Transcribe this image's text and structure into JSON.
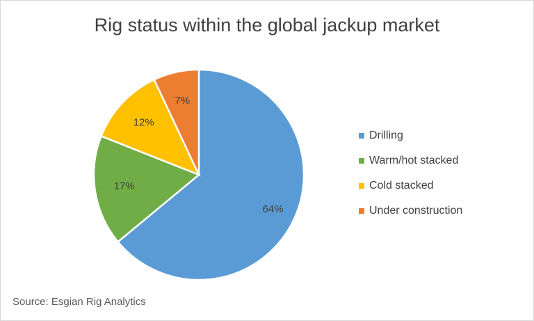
{
  "chart_data": {
    "type": "pie",
    "title": "Rig status within the global jackup market",
    "categories": [
      "Drilling",
      "Warm/hot stacked",
      "Cold stacked",
      "Under construction"
    ],
    "values": [
      64,
      17,
      12,
      7
    ],
    "value_labels": [
      "64%",
      "17%",
      "12%",
      "7%"
    ],
    "colors": [
      "#5b9bd5",
      "#70ad47",
      "#ffc000",
      "#ed7d31"
    ],
    "legend": "right",
    "source": "Source: Esgian Rig Analytics"
  }
}
